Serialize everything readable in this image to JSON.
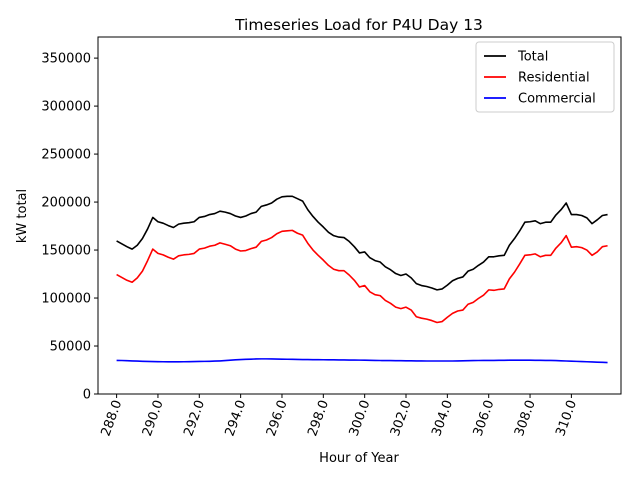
{
  "chart_data": {
    "type": "line",
    "title": "Timeseries Load for P4U   Day 13",
    "xlabel": "Hour of Year",
    "ylabel": "kW total",
    "xlim": [
      287.1,
      312.4
    ],
    "ylim": [
      0,
      372000
    ],
    "xticks": [
      288,
      290,
      292,
      294,
      296,
      298,
      300,
      302,
      304,
      306,
      308,
      310
    ],
    "xtick_labels": [
      "288.0",
      "290.0",
      "292.0",
      "294.0",
      "296.0",
      "298.0",
      "300.0",
      "302.0",
      "304.0",
      "306.0",
      "308.0",
      "310.0"
    ],
    "yticks": [
      0,
      50000,
      100000,
      150000,
      200000,
      250000,
      300000,
      350000
    ],
    "ytick_labels": [
      "0",
      "50000",
      "100000",
      "150000",
      "200000",
      "250000",
      "300000",
      "350000"
    ],
    "legend_position": "top-right",
    "x": [
      288.0,
      288.25,
      288.5,
      288.75,
      289.0,
      289.25,
      289.5,
      289.75,
      290.0,
      290.25,
      290.5,
      290.75,
      291.0,
      291.25,
      291.5,
      291.75,
      292.0,
      292.25,
      292.5,
      292.75,
      293.0,
      293.25,
      293.5,
      293.75,
      294.0,
      294.25,
      294.5,
      294.75,
      295.0,
      295.25,
      295.5,
      295.75,
      296.0,
      296.25,
      296.5,
      296.75,
      297.0,
      297.25,
      297.5,
      297.75,
      298.0,
      298.25,
      298.5,
      298.75,
      299.0,
      299.25,
      299.5,
      299.75,
      300.0,
      300.25,
      300.5,
      300.75,
      301.0,
      301.25,
      301.5,
      301.75,
      302.0,
      302.25,
      302.5,
      302.75,
      303.0,
      303.25,
      303.5,
      303.75,
      304.0,
      304.25,
      304.5,
      304.75,
      305.0,
      305.25,
      305.5,
      305.75,
      306.0,
      306.25,
      306.5,
      306.75,
      307.0,
      307.25,
      307.5,
      307.75,
      308.0,
      308.25,
      308.5,
      308.75,
      309.0,
      309.25,
      309.5,
      309.75,
      310.0,
      310.25,
      310.5,
      310.75,
      311.0,
      311.25,
      311.5,
      311.75
    ],
    "series": [
      {
        "name": "Total",
        "color": "#000000",
        "values": [
          159500,
          156500,
          153500,
          151000,
          155000,
          162000,
          172000,
          184000,
          179500,
          178000,
          175500,
          173500,
          177000,
          178000,
          178500,
          179500,
          184000,
          185000,
          187000,
          188000,
          190500,
          189500,
          188000,
          185500,
          184000,
          185500,
          188000,
          189500,
          195500,
          197000,
          199000,
          203000,
          205500,
          206000,
          206000,
          203500,
          201000,
          192000,
          185000,
          179000,
          174000,
          168500,
          165000,
          163500,
          163000,
          159000,
          153500,
          147000,
          148000,
          142000,
          139000,
          137500,
          132500,
          129500,
          125500,
          123500,
          125000,
          121000,
          115000,
          113000,
          112000,
          110500,
          108500,
          109500,
          113500,
          118000,
          120500,
          122000,
          128000,
          130000,
          134000,
          137500,
          143000,
          143000,
          144000,
          144500,
          155000,
          162000,
          170000,
          179000,
          179500,
          180500,
          177500,
          179000,
          179000,
          186500,
          192000,
          199000,
          187000,
          187000,
          186000,
          183500,
          177500,
          181500,
          186000,
          187000
        ]
      },
      {
        "name": "Residential",
        "color": "#ff0000",
        "values": [
          124500,
          121500,
          118500,
          116500,
          121000,
          128000,
          139000,
          151000,
          146500,
          145000,
          142500,
          140500,
          144000,
          145000,
          145500,
          146500,
          151000,
          152000,
          154000,
          155000,
          157500,
          156000,
          154500,
          151000,
          149000,
          149500,
          151500,
          153000,
          159000,
          160500,
          163000,
          167000,
          169500,
          170000,
          170500,
          167500,
          165500,
          157000,
          150000,
          144500,
          139500,
          134000,
          130000,
          128500,
          128500,
          124000,
          118500,
          111500,
          113000,
          106500,
          103500,
          102500,
          97500,
          94500,
          90500,
          89000,
          90500,
          87500,
          80500,
          79000,
          78000,
          76500,
          74500,
          75500,
          80000,
          84000,
          86500,
          87500,
          93500,
          95500,
          99500,
          103000,
          108500,
          108000,
          109000,
          109500,
          120000,
          127000,
          135500,
          144500,
          145000,
          146000,
          143000,
          144500,
          144500,
          152000,
          157500,
          165000,
          153000,
          153500,
          152500,
          150000,
          144500,
          148000,
          153500,
          154500
        ]
      },
      {
        "name": "Commercial",
        "color": "#0000ff",
        "values": [
          35000,
          34900,
          34700,
          34500,
          34300,
          34100,
          33900,
          33800,
          33700,
          33600,
          33500,
          33500,
          33500,
          33600,
          33700,
          33800,
          33900,
          34000,
          34100,
          34300,
          34500,
          34800,
          35200,
          35600,
          35900,
          36100,
          36300,
          36500,
          36600,
          36600,
          36500,
          36400,
          36300,
          36200,
          36100,
          36000,
          35900,
          35900,
          35800,
          35800,
          35700,
          35600,
          35600,
          35500,
          35500,
          35400,
          35400,
          35300,
          35200,
          35100,
          35000,
          34900,
          34800,
          34800,
          34700,
          34700,
          34600,
          34600,
          34500,
          34500,
          34400,
          34400,
          34400,
          34400,
          34400,
          34400,
          34500,
          34600,
          34700,
          34800,
          34900,
          35000,
          35000,
          35000,
          35100,
          35100,
          35200,
          35200,
          35200,
          35200,
          35200,
          35100,
          35100,
          35000,
          35000,
          34800,
          34600,
          34400,
          34200,
          34000,
          33800,
          33600,
          33400,
          33200,
          33000,
          32800
        ]
      }
    ]
  }
}
